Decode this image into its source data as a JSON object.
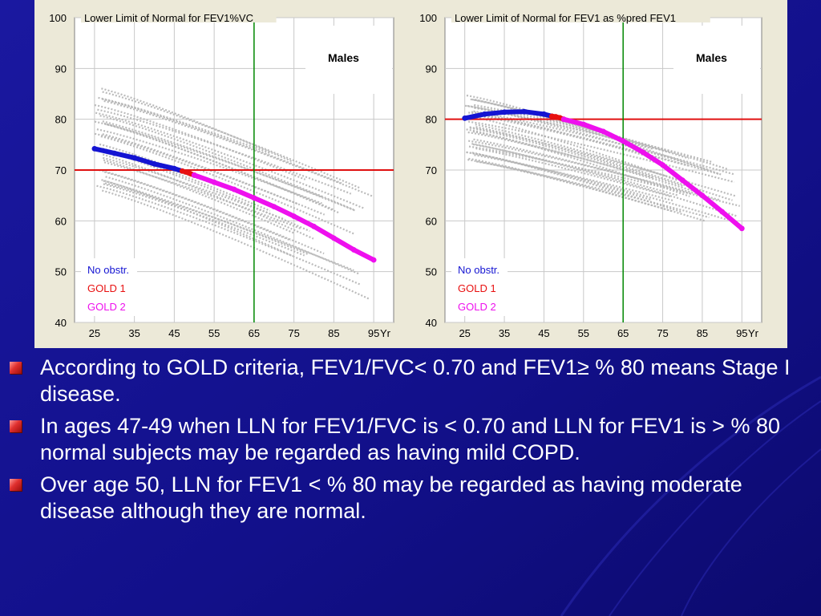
{
  "colors": {
    "background": "#14128c",
    "panel": "#ece9d8",
    "plot": "#ffffff",
    "grid": "#c8c8c8",
    "cloud": "#b4b4b4",
    "threshold": "#e01010",
    "age65": "#008800",
    "no_obstr": "#1414d2",
    "gold1": "#e81010",
    "gold2": "#ee10ee"
  },
  "chart_data": [
    {
      "type": "line",
      "title": "Lower Limit of Normal for FEV1%VC",
      "box_label": "Males",
      "x_unit": "Yr",
      "xlim": [
        20,
        100
      ],
      "ylim": [
        40,
        100
      ],
      "x_ticks": [
        "25",
        "35",
        "45",
        "55",
        "65",
        "75",
        "85",
        "95"
      ],
      "y_ticks": [
        "40",
        "50",
        "60",
        "70",
        "80",
        "90",
        "100"
      ],
      "grid": true,
      "threshold_y": 70,
      "vertical_marker_x": 65,
      "legend": [
        "No obstr.",
        "GOLD 1",
        "GOLD 2"
      ],
      "series": [
        {
          "name": "No obstr.",
          "color_key": "no_obstr",
          "x": [
            25,
            30,
            35,
            40,
            45,
            47
          ],
          "y": [
            74.2,
            73.3,
            72.4,
            71.2,
            70.3,
            69.8
          ]
        },
        {
          "name": "GOLD 1",
          "color_key": "gold1",
          "x": [
            47,
            48,
            49,
            50
          ],
          "y": [
            69.8,
            69.6,
            69.3,
            69.0
          ]
        },
        {
          "name": "GOLD 2",
          "color_key": "gold2",
          "x": [
            50,
            55,
            60,
            65,
            70,
            75,
            80,
            85,
            90,
            95
          ],
          "y": [
            69.0,
            67.6,
            66.2,
            64.5,
            62.8,
            60.9,
            58.9,
            56.6,
            54.3,
            52.3
          ]
        }
      ],
      "reference_band": {
        "x_start": 25,
        "x_end": 95,
        "upper_start": 86,
        "upper_end": 66,
        "lower_start": 66,
        "lower_end": 45
      }
    },
    {
      "type": "line",
      "title": "Lower Limit of Normal for FEV1 as %pred FEV1",
      "box_label": "Males",
      "x_unit": "Yr",
      "xlim": [
        20,
        100
      ],
      "ylim": [
        40,
        100
      ],
      "x_ticks": [
        "25",
        "35",
        "45",
        "55",
        "65",
        "75",
        "85",
        "95"
      ],
      "y_ticks": [
        "40",
        "50",
        "60",
        "70",
        "80",
        "90",
        "100"
      ],
      "grid": true,
      "threshold_y": 80,
      "vertical_marker_x": 65,
      "legend": [
        "No obstr.",
        "GOLD 1",
        "GOLD 2"
      ],
      "series": [
        {
          "name": "No obstr.",
          "color_key": "no_obstr",
          "x": [
            25,
            30,
            35,
            40,
            45,
            47
          ],
          "y": [
            80.2,
            81.0,
            81.4,
            81.5,
            81.0,
            80.6
          ]
        },
        {
          "name": "GOLD 1",
          "color_key": "gold1",
          "x": [
            47,
            48,
            49,
            50
          ],
          "y": [
            80.6,
            80.5,
            80.3,
            80.0
          ]
        },
        {
          "name": "GOLD 2",
          "color_key": "gold2",
          "x": [
            50,
            55,
            60,
            65,
            70,
            75,
            80,
            85,
            90,
            95
          ],
          "y": [
            80.0,
            79.0,
            77.6,
            75.7,
            73.5,
            71.0,
            68.0,
            65.0,
            61.8,
            58.5
          ]
        }
      ],
      "reference_band": {
        "x_start": 25,
        "x_end": 95,
        "upper_start": 85,
        "upper_end": 70,
        "lower_start": 72,
        "lower_end": 58
      }
    }
  ],
  "bullets": [
    "According to GOLD criteria, FEV1/FVC< 0.70 and FEV1≥ % 80 means Stage I disease.",
    "In ages 47-49 when LLN for FEV1/FVC is < 0.70 and  LLN for FEV1 is > % 80 normal subjects may be regarded as having mild COPD.",
    "Over age 50, LLN for FEV1 < % 80  may be regarded as having moderate disease although they are normal."
  ]
}
